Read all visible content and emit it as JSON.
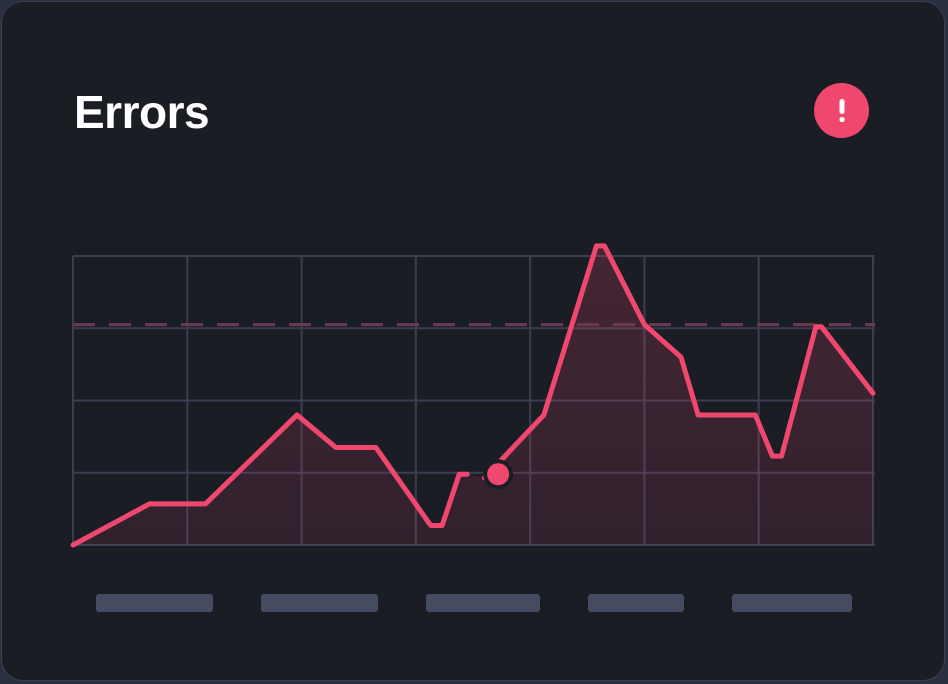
{
  "card": {
    "title": "Errors",
    "alert_icon": "exclamation-icon",
    "accent_color": "#f0476f",
    "grid_color": "#3a3e50",
    "placeholder_color": "#454c62"
  },
  "chart_data": {
    "type": "area",
    "title": "Errors",
    "xlabel": "",
    "ylabel": "",
    "xlim": [
      0,
      7
    ],
    "ylim": [
      0,
      4
    ],
    "grid": true,
    "threshold": 3.05,
    "x_tick_labels": [
      "",
      "",
      "",
      "",
      ""
    ],
    "series": [
      {
        "points": [
          [
            0.0,
            0.0
          ],
          [
            0.67,
            0.57
          ],
          [
            1.16,
            0.57
          ],
          [
            1.96,
            1.8
          ],
          [
            2.3,
            1.35
          ],
          [
            2.65,
            1.35
          ],
          [
            3.13,
            0.27
          ],
          [
            3.23,
            0.27
          ],
          [
            3.38,
            0.98
          ],
          [
            3.45,
            0.98
          ],
          [
            3.6,
            0.93
          ],
          [
            3.6,
            0.93
          ],
          [
            4.12,
            1.8
          ],
          [
            4.58,
            4.14
          ],
          [
            4.65,
            4.14
          ],
          [
            5.0,
            3.05
          ],
          [
            5.32,
            2.6
          ],
          [
            5.47,
            1.8
          ],
          [
            5.97,
            1.8
          ],
          [
            6.12,
            1.23
          ],
          [
            6.2,
            1.23
          ],
          [
            6.5,
            3.02
          ],
          [
            6.55,
            3.02
          ],
          [
            7.0,
            2.1
          ]
        ],
        "highlight": [
          3.72,
          0.98
        ],
        "gap": [
          3.45,
          3.72
        ]
      }
    ]
  }
}
